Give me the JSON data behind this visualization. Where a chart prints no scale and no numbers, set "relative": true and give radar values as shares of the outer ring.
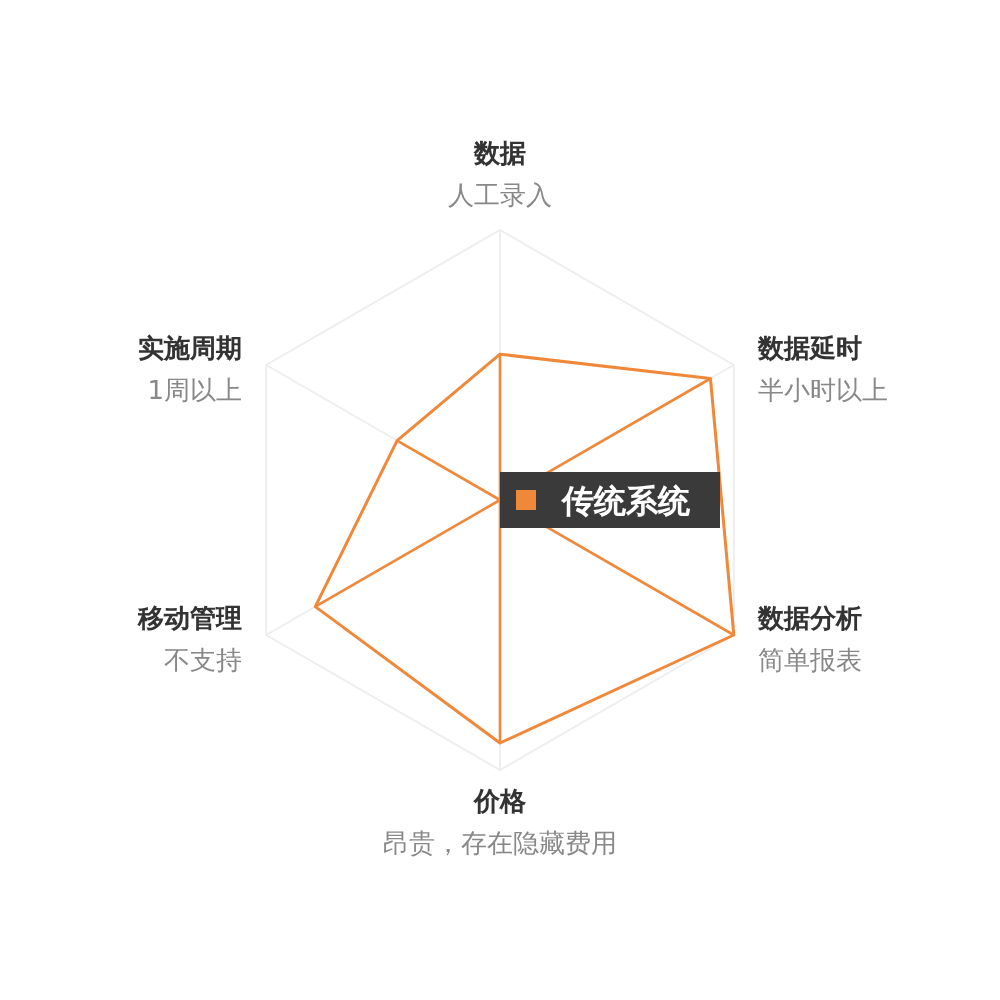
{
  "chart_data": {
    "type": "radar",
    "relative": true,
    "categories": [
      "数据",
      "数据延时",
      "数据分析",
      "价格",
      "移动管理",
      "实施周期"
    ],
    "series": [
      {
        "name": "传统系统",
        "color": "#f0883a",
        "values": [
          0.54,
          0.9,
          1,
          0.9,
          0.79,
          0.44
        ]
      }
    ],
    "annotations": [
      "人工录入",
      "半小时以上",
      "简单报表",
      "昂贵，存在隐藏费用",
      "不支持",
      "1周以上"
    ]
  }
}
